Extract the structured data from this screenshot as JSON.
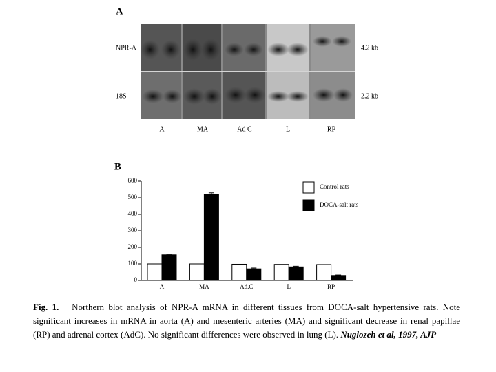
{
  "panel_a": {
    "letter": "A",
    "rows": [
      "NPR-A",
      "18S"
    ],
    "sizes": [
      "4.2 kb",
      "2.2 kb"
    ],
    "lanes": [
      "A",
      "MA",
      "Ad C",
      "L",
      "RP"
    ]
  },
  "chart_data": {
    "type": "bar",
    "letter": "B",
    "categories": [
      "A",
      "MA",
      "Ad.C",
      "L",
      "RP"
    ],
    "series": [
      {
        "name": "Control rats",
        "color": "#ffffff",
        "values": [
          100,
          100,
          98,
          97,
          96
        ]
      },
      {
        "name": "DOCA-salt rats",
        "color": "#000000",
        "values": [
          155,
          522,
          70,
          82,
          30
        ],
        "errors": [
          4,
          8,
          5,
          4,
          3
        ]
      }
    ],
    "ylim": [
      0,
      600
    ],
    "yticks": [
      0,
      100,
      200,
      300,
      400,
      500,
      600
    ]
  },
  "caption": {
    "label": "Fig. 1.",
    "text": "Northern blot analysis of NPR-A mRNA in different tissues from DOCA-salt hypertensive rats. Note significant increases in mRNA in aorta (A) and mesenteric arteries (MA) and significant decrease in renal papillae (RP) and adrenal cortex (AdC). No significant differences were observed in lung (L).",
    "citation": "Nuglozeh et al, 1997, AJP"
  }
}
